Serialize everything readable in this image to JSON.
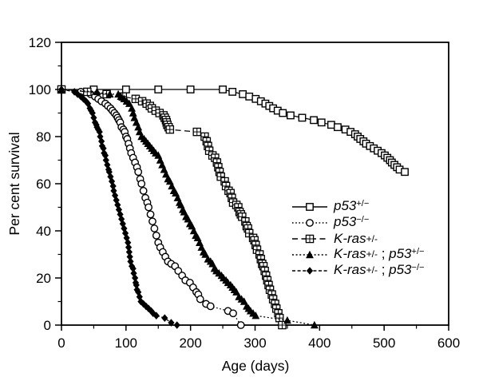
{
  "figure": {
    "background_color": "#ffffff",
    "ink_color": "#000000"
  },
  "chart_data": {
    "type": "line",
    "title": "",
    "xlabel": "Age (days)",
    "ylabel": "Per cent survival",
    "xlim": [
      0,
      600
    ],
    "ylim": [
      0,
      120
    ],
    "x_major_ticks": [
      0,
      100,
      200,
      300,
      400,
      500,
      600
    ],
    "x_minor_step": 50,
    "y_major_ticks": [
      0,
      20,
      40,
      60,
      80,
      100,
      120
    ],
    "y_minor_step": 10,
    "grid": false,
    "legend_position": "right-center",
    "series": [
      {
        "id": "p53-het",
        "label": "p53+/−",
        "label_parts": [
          {
            "t": "p53",
            "s": "i"
          },
          {
            "t": "+/−",
            "s": "sup"
          }
        ],
        "marker": "open-square",
        "line_style": "solid",
        "points": [
          [
            0,
            100
          ],
          [
            50,
            100
          ],
          [
            100,
            100
          ],
          [
            150,
            100
          ],
          [
            200,
            100
          ],
          [
            250,
            100
          ],
          [
            265,
            99
          ],
          [
            281,
            98
          ],
          [
            291,
            97
          ],
          [
            301,
            96
          ],
          [
            309,
            95
          ],
          [
            316,
            94
          ],
          [
            322,
            93
          ],
          [
            328,
            92
          ],
          [
            335,
            91
          ],
          [
            343,
            90
          ],
          [
            355,
            89
          ],
          [
            373,
            88
          ],
          [
            391,
            87
          ],
          [
            403,
            86
          ],
          [
            418,
            85
          ],
          [
            428,
            84
          ],
          [
            440,
            83
          ],
          [
            448,
            82
          ],
          [
            455,
            81
          ],
          [
            459,
            80
          ],
          [
            463,
            79
          ],
          [
            468,
            78
          ],
          [
            472,
            77
          ],
          [
            478,
            76
          ],
          [
            484,
            75
          ],
          [
            490,
            74
          ],
          [
            496,
            73
          ],
          [
            501,
            72
          ],
          [
            505,
            71
          ],
          [
            509,
            70
          ],
          [
            512,
            69
          ],
          [
            516,
            68
          ],
          [
            520,
            67
          ],
          [
            524,
            66
          ],
          [
            532,
            65
          ]
        ]
      },
      {
        "id": "p53-null",
        "label": "p53−/−",
        "label_parts": [
          {
            "t": "p53",
            "s": "i"
          },
          {
            "t": "−/−",
            "s": "sup"
          }
        ],
        "marker": "open-circle",
        "line_style": "dotted",
        "points": [
          [
            0,
            100
          ],
          [
            30,
            99
          ],
          [
            45,
            98
          ],
          [
            52,
            97
          ],
          [
            57,
            96
          ],
          [
            62,
            95
          ],
          [
            68,
            94
          ],
          [
            72,
            93
          ],
          [
            76,
            92
          ],
          [
            79,
            91
          ],
          [
            82,
            90
          ],
          [
            85,
            89
          ],
          [
            87,
            88
          ],
          [
            89,
            87
          ],
          [
            91,
            86
          ],
          [
            93,
            84
          ],
          [
            96,
            83
          ],
          [
            98,
            82
          ],
          [
            100,
            80
          ],
          [
            102,
            79
          ],
          [
            104,
            77
          ],
          [
            106,
            75
          ],
          [
            108,
            73
          ],
          [
            111,
            71
          ],
          [
            114,
            69
          ],
          [
            117,
            67
          ],
          [
            119,
            65
          ],
          [
            122,
            62
          ],
          [
            124,
            60
          ],
          [
            127,
            57
          ],
          [
            130,
            54
          ],
          [
            133,
            52
          ],
          [
            135,
            50
          ],
          [
            138,
            47
          ],
          [
            141,
            44
          ],
          [
            144,
            41
          ],
          [
            147,
            38
          ],
          [
            150,
            35
          ],
          [
            153,
            33
          ],
          [
            157,
            31
          ],
          [
            161,
            29
          ],
          [
            165,
            27
          ],
          [
            170,
            26
          ],
          [
            176,
            25
          ],
          [
            181,
            23
          ],
          [
            187,
            21
          ],
          [
            192,
            19
          ],
          [
            199,
            18
          ],
          [
            204,
            16
          ],
          [
            209,
            14
          ],
          [
            212,
            13
          ],
          [
            215,
            11
          ],
          [
            224,
            9
          ],
          [
            231,
            8
          ],
          [
            258,
            6
          ],
          [
            266,
            5
          ],
          [
            278,
            0
          ]
        ]
      },
      {
        "id": "kras-het",
        "label": "K-ras+/-",
        "label_parts": [
          {
            "t": "K-ras",
            "s": "i"
          },
          {
            "t": "+/-",
            "s": "small"
          }
        ],
        "marker": "crossed-square",
        "line_style": "dashed",
        "points": [
          [
            0,
            100
          ],
          [
            40,
            99
          ],
          [
            70,
            98
          ],
          [
            95,
            97
          ],
          [
            115,
            96
          ],
          [
            125,
            95
          ],
          [
            132,
            94
          ],
          [
            137,
            93
          ],
          [
            140,
            92
          ],
          [
            146,
            91
          ],
          [
            152,
            90
          ],
          [
            158,
            89
          ],
          [
            160,
            88
          ],
          [
            162,
            87
          ],
          [
            163,
            86
          ],
          [
            164,
            85
          ],
          [
            166,
            84
          ],
          [
            168,
            83
          ],
          [
            210,
            82
          ],
          [
            222,
            80
          ],
          [
            225,
            78
          ],
          [
            227,
            76
          ],
          [
            229,
            74
          ],
          [
            234,
            72
          ],
          [
            238,
            71
          ],
          [
            241,
            69
          ],
          [
            243,
            67
          ],
          [
            245,
            65
          ],
          [
            247,
            63
          ],
          [
            253,
            61
          ],
          [
            255,
            59
          ],
          [
            259,
            57
          ],
          [
            262,
            56
          ],
          [
            264,
            54
          ],
          [
            266,
            52
          ],
          [
            271,
            51
          ],
          [
            274,
            50
          ],
          [
            276,
            48
          ],
          [
            278,
            47
          ],
          [
            280,
            46
          ],
          [
            285,
            44
          ],
          [
            287,
            42
          ],
          [
            289,
            41
          ],
          [
            291,
            39
          ],
          [
            297,
            37
          ],
          [
            299,
            36
          ],
          [
            301,
            34
          ],
          [
            303,
            32
          ],
          [
            307,
            30
          ],
          [
            309,
            28
          ],
          [
            311,
            26
          ],
          [
            313,
            25
          ],
          [
            315,
            23
          ],
          [
            317,
            21
          ],
          [
            319,
            19
          ],
          [
            321,
            17
          ],
          [
            323,
            15
          ],
          [
            326,
            13
          ],
          [
            328,
            11
          ],
          [
            331,
            9
          ],
          [
            333,
            7
          ],
          [
            336,
            5
          ],
          [
            338,
            3
          ],
          [
            342,
            0
          ]
        ]
      },
      {
        "id": "kras-het-p53-het",
        "label": "K-ras+/- ; p53+/−",
        "label_parts": [
          {
            "t": "K-ras",
            "s": "i"
          },
          {
            "t": "+/-",
            "s": "small"
          },
          {
            "t": " ; ",
            "s": ""
          },
          {
            "t": "p53",
            "s": "i"
          },
          {
            "t": "+/−",
            "s": "sup"
          }
        ],
        "marker": "filled-triangle",
        "line_style": "fine-dash",
        "points": [
          [
            0,
            100
          ],
          [
            55,
            99
          ],
          [
            75,
            98
          ],
          [
            88,
            98
          ],
          [
            92,
            97
          ],
          [
            97,
            96
          ],
          [
            101,
            95
          ],
          [
            105,
            94
          ],
          [
            109,
            92
          ],
          [
            111,
            90
          ],
          [
            113,
            88
          ],
          [
            116,
            86
          ],
          [
            119,
            84
          ],
          [
            121,
            82
          ],
          [
            124,
            80
          ],
          [
            128,
            79
          ],
          [
            131,
            78
          ],
          [
            134,
            77
          ],
          [
            137,
            76
          ],
          [
            140,
            75
          ],
          [
            143,
            74
          ],
          [
            146,
            73
          ],
          [
            150,
            72
          ],
          [
            153,
            70
          ],
          [
            156,
            68
          ],
          [
            159,
            66
          ],
          [
            162,
            64
          ],
          [
            165,
            62
          ],
          [
            168,
            61
          ],
          [
            171,
            59
          ],
          [
            174,
            57
          ],
          [
            177,
            56
          ],
          [
            180,
            54
          ],
          [
            183,
            52
          ],
          [
            185,
            51
          ],
          [
            188,
            49
          ],
          [
            190,
            48
          ],
          [
            193,
            46
          ],
          [
            196,
            45
          ],
          [
            199,
            43
          ],
          [
            202,
            42
          ],
          [
            205,
            40
          ],
          [
            208,
            38
          ],
          [
            211,
            37
          ],
          [
            214,
            35
          ],
          [
            217,
            33
          ],
          [
            220,
            31
          ],
          [
            223,
            30
          ],
          [
            227,
            28
          ],
          [
            231,
            27
          ],
          [
            234,
            26
          ],
          [
            237,
            24
          ],
          [
            240,
            23
          ],
          [
            244,
            22
          ],
          [
            248,
            21
          ],
          [
            251,
            20
          ],
          [
            255,
            19
          ],
          [
            258,
            18
          ],
          [
            262,
            17
          ],
          [
            265,
            16
          ],
          [
            268,
            15
          ],
          [
            271,
            14
          ],
          [
            275,
            12
          ],
          [
            279,
            11
          ],
          [
            283,
            10
          ],
          [
            287,
            8
          ],
          [
            290,
            7
          ],
          [
            293,
            6
          ],
          [
            297,
            5
          ],
          [
            301,
            4
          ],
          [
            350,
            2
          ],
          [
            392,
            0
          ]
        ]
      },
      {
        "id": "kras-het-p53-null",
        "label": "K-ras+/- ; p53−/−",
        "label_parts": [
          {
            "t": "K-ras",
            "s": "i"
          },
          {
            "t": "+/-",
            "s": "small"
          },
          {
            "t": " ; ",
            "s": ""
          },
          {
            "t": "p53",
            "s": "i"
          },
          {
            "t": "−/−",
            "s": "sup"
          }
        ],
        "marker": "filled-diamond",
        "line_style": "short-dash",
        "points": [
          [
            0,
            100
          ],
          [
            20,
            99
          ],
          [
            25,
            98
          ],
          [
            30,
            97
          ],
          [
            34,
            96
          ],
          [
            38,
            95
          ],
          [
            41,
            94
          ],
          [
            44,
            92
          ],
          [
            46,
            91
          ],
          [
            48,
            90
          ],
          [
            50,
            88
          ],
          [
            52,
            86
          ],
          [
            54,
            85
          ],
          [
            55,
            84
          ],
          [
            57,
            83
          ],
          [
            59,
            82
          ],
          [
            60,
            80
          ],
          [
            62,
            78
          ],
          [
            63,
            76
          ],
          [
            65,
            75
          ],
          [
            66,
            73
          ],
          [
            68,
            72
          ],
          [
            69,
            70
          ],
          [
            71,
            68
          ],
          [
            73,
            66
          ],
          [
            74,
            65
          ],
          [
            76,
            63
          ],
          [
            78,
            61
          ],
          [
            80,
            59
          ],
          [
            81,
            57
          ],
          [
            83,
            55
          ],
          [
            85,
            53
          ],
          [
            87,
            51
          ],
          [
            89,
            49
          ],
          [
            91,
            47
          ],
          [
            93,
            45
          ],
          [
            95,
            43
          ],
          [
            97,
            41
          ],
          [
            99,
            39
          ],
          [
            101,
            37
          ],
          [
            103,
            35
          ],
          [
            104,
            33
          ],
          [
            105,
            31
          ],
          [
            106,
            29
          ],
          [
            107,
            27
          ],
          [
            109,
            25
          ],
          [
            111,
            24
          ],
          [
            112,
            22
          ],
          [
            114,
            20
          ],
          [
            115,
            18
          ],
          [
            116,
            17
          ],
          [
            117,
            15
          ],
          [
            119,
            14
          ],
          [
            121,
            12
          ],
          [
            123,
            10
          ],
          [
            127,
            9
          ],
          [
            131,
            8
          ],
          [
            135,
            7
          ],
          [
            139,
            6
          ],
          [
            142,
            5
          ],
          [
            147,
            4
          ],
          [
            160,
            3
          ],
          [
            170,
            1
          ],
          [
            179,
            0
          ]
        ]
      }
    ]
  }
}
